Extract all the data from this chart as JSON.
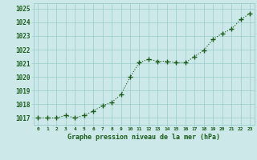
{
  "x": [
    0,
    1,
    2,
    3,
    4,
    5,
    6,
    7,
    8,
    9,
    10,
    11,
    12,
    13,
    14,
    15,
    16,
    17,
    18,
    19,
    20,
    21,
    22,
    23
  ],
  "y": [
    1017.0,
    1017.0,
    1017.0,
    1017.2,
    1017.0,
    1017.2,
    1017.5,
    1017.9,
    1018.15,
    1018.7,
    1020.0,
    1021.05,
    1021.3,
    1021.15,
    1021.15,
    1021.05,
    1021.05,
    1021.5,
    1021.95,
    1022.75,
    1023.2,
    1023.5,
    1024.2,
    1024.65
  ],
  "ylim_min": 1016.5,
  "ylim_max": 1025.4,
  "yticks": [
    1017,
    1018,
    1019,
    1020,
    1021,
    1022,
    1023,
    1024,
    1025
  ],
  "xlabel": "Graphe pression niveau de la mer (hPa)",
  "line_color": "#1a5c1a",
  "marker_color": "#1a5c1a",
  "bg_color": "#cce8e8",
  "grid_color": "#99cccc",
  "text_color": "#1a5c1a",
  "fig_bg": "#cce8e8"
}
